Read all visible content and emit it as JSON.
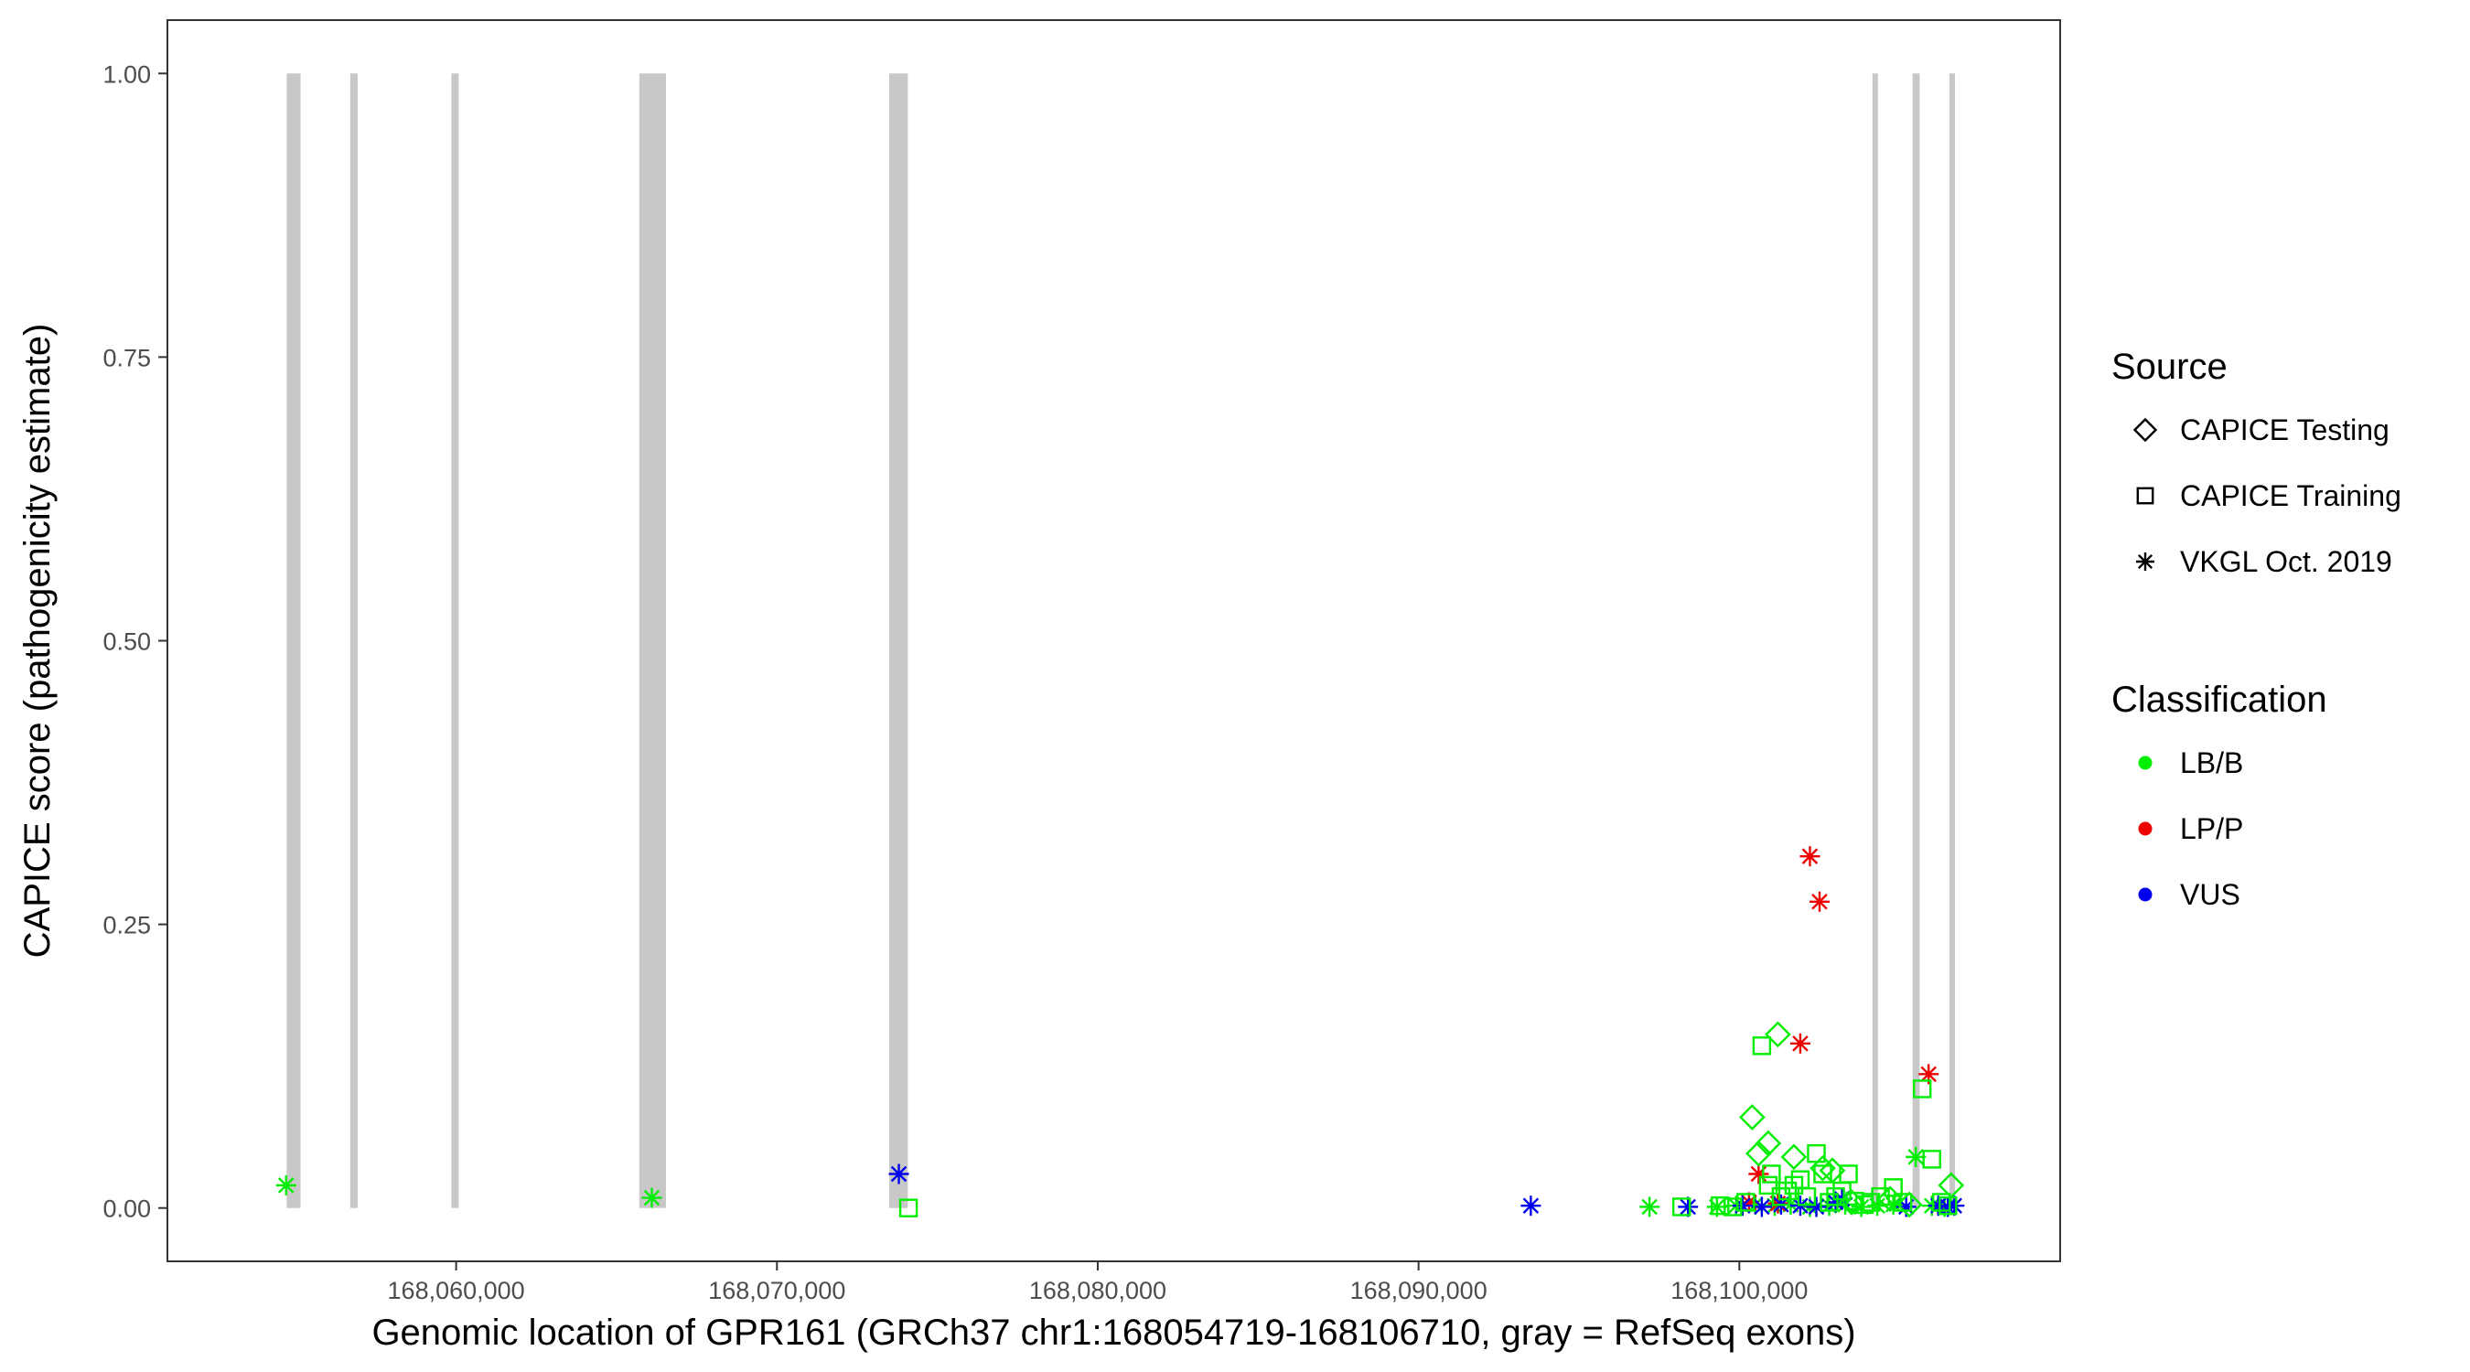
{
  "chart_data": {
    "type": "scatter",
    "title": "",
    "xlabel": "Genomic location of GPR161 (GRCh37 chr1:168054719-168106710, gray = RefSeq exons)",
    "ylabel": "CAPICE score (pathogenicity estimate)",
    "xlim": [
      168051000,
      168110000
    ],
    "ylim": [
      -0.047,
      1.047
    ],
    "x_ticks": [
      168060000,
      168070000,
      168080000,
      168090000,
      168100000
    ],
    "x_tick_labels": [
      "168,060,000",
      "168,070,000",
      "168,080,000",
      "168,090,000",
      "168,100,000"
    ],
    "y_ticks": [
      0,
      0.25,
      0.5,
      0.75,
      1.0
    ],
    "y_tick_labels": [
      "0.00",
      "0.25",
      "0.50",
      "0.75",
      "1.00"
    ],
    "grid": false,
    "legend_position": "right",
    "exon_color": "#c8c8c8",
    "exons": [
      {
        "start": 168054719,
        "end": 168055150
      },
      {
        "start": 168056700,
        "end": 168056930
      },
      {
        "start": 168059850,
        "end": 168060080
      },
      {
        "start": 168065710,
        "end": 168066540
      },
      {
        "start": 168073500,
        "end": 168074080
      },
      {
        "start": 168104150,
        "end": 168104260
      },
      {
        "start": 168105400,
        "end": 168105620
      },
      {
        "start": 168106550,
        "end": 168106710
      }
    ],
    "legend": {
      "source_title": "Source",
      "source_items": [
        {
          "label": "CAPICE Testing",
          "shape": "diamond"
        },
        {
          "label": "CAPICE Training",
          "shape": "square"
        },
        {
          "label": "VKGL Oct. 2019",
          "shape": "asterisk"
        }
      ],
      "class_title": "Classification",
      "class_items": [
        {
          "label": "LB/B",
          "color": "#00ee00"
        },
        {
          "label": "LP/P",
          "color": "#ee0000"
        },
        {
          "label": "VUS",
          "color": "#0000ee"
        }
      ]
    },
    "series": [
      {
        "source": "VKGL Oct. 2019",
        "shape": "asterisk",
        "classification": "LB/B",
        "color": "#00ee00",
        "points": [
          [
            168054700,
            0.02
          ],
          [
            168066100,
            0.009
          ],
          [
            168097200,
            0.001
          ],
          [
            168099300,
            0.001
          ],
          [
            168099900,
            0.002
          ],
          [
            168100500,
            0.003
          ],
          [
            168101100,
            0.002
          ],
          [
            168101600,
            0.003
          ],
          [
            168102200,
            0.001
          ],
          [
            168102800,
            0.002
          ],
          [
            168103300,
            0.003
          ],
          [
            168103800,
            0.001
          ],
          [
            168104300,
            0.002
          ],
          [
            168104800,
            0.003
          ],
          [
            168105500,
            0.045
          ],
          [
            168106000,
            0.002
          ],
          [
            168106400,
            0.001
          ]
        ]
      },
      {
        "source": "VKGL Oct. 2019",
        "shape": "asterisk",
        "classification": "LP/P",
        "color": "#ee0000",
        "points": [
          [
            168100600,
            0.03
          ],
          [
            168100300,
            0.005
          ],
          [
            168101200,
            0.004
          ],
          [
            168101900,
            0.145
          ],
          [
            168102200,
            0.31
          ],
          [
            168102500,
            0.27
          ],
          [
            168105900,
            0.118
          ]
        ]
      },
      {
        "source": "VKGL Oct. 2019",
        "shape": "asterisk",
        "classification": "VUS",
        "color": "#0000ee",
        "points": [
          [
            168073800,
            0.03
          ],
          [
            168093500,
            0.002
          ],
          [
            168098400,
            0.001
          ],
          [
            168100100,
            0.002
          ],
          [
            168100700,
            0.001
          ],
          [
            168101300,
            0.003
          ],
          [
            168101900,
            0.002
          ],
          [
            168102400,
            0.001
          ],
          [
            168103000,
            0.005
          ],
          [
            168103200,
            0.008
          ],
          [
            168105200,
            0.001
          ],
          [
            168106200,
            0.002
          ],
          [
            168106500,
            0.001
          ],
          [
            168106700,
            0.002
          ]
        ]
      },
      {
        "source": "CAPICE Training",
        "shape": "square",
        "classification": "LB/B",
        "color": "#00ee00",
        "points": [
          [
            168074100,
            0.0
          ],
          [
            168098200,
            0.001
          ],
          [
            168099400,
            0.002
          ],
          [
            168099800,
            0.001
          ],
          [
            168100200,
            0.005
          ],
          [
            168100700,
            0.143
          ],
          [
            168100900,
            0.02
          ],
          [
            168101000,
            0.03
          ],
          [
            168101300,
            0.01
          ],
          [
            168101500,
            0.015
          ],
          [
            168101700,
            0.02
          ],
          [
            168101900,
            0.025
          ],
          [
            168102100,
            0.01
          ],
          [
            168102400,
            0.048
          ],
          [
            168102600,
            0.03
          ],
          [
            168102800,
            0.005
          ],
          [
            168103000,
            0.01
          ],
          [
            168103200,
            0.015
          ],
          [
            168103400,
            0.03
          ],
          [
            168103600,
            0.006
          ],
          [
            168103900,
            0.003
          ],
          [
            168104100,
            0.005
          ],
          [
            168104400,
            0.01
          ],
          [
            168104800,
            0.018
          ],
          [
            168105100,
            0.005
          ],
          [
            168105700,
            0.105
          ],
          [
            168106000,
            0.043
          ],
          [
            168106300,
            0.005
          ],
          [
            168106500,
            0.002
          ]
        ]
      },
      {
        "source": "CAPICE Testing",
        "shape": "diamond",
        "classification": "LB/B",
        "color": "#00ee00",
        "points": [
          [
            168100400,
            0.08
          ],
          [
            168100600,
            0.048
          ],
          [
            168100900,
            0.057
          ],
          [
            168101200,
            0.153
          ],
          [
            168101700,
            0.045
          ],
          [
            168102600,
            0.035
          ],
          [
            168102900,
            0.033
          ],
          [
            168103500,
            0.005
          ],
          [
            168104700,
            0.008
          ],
          [
            168105300,
            0.003
          ],
          [
            168106600,
            0.02
          ]
        ]
      }
    ]
  }
}
